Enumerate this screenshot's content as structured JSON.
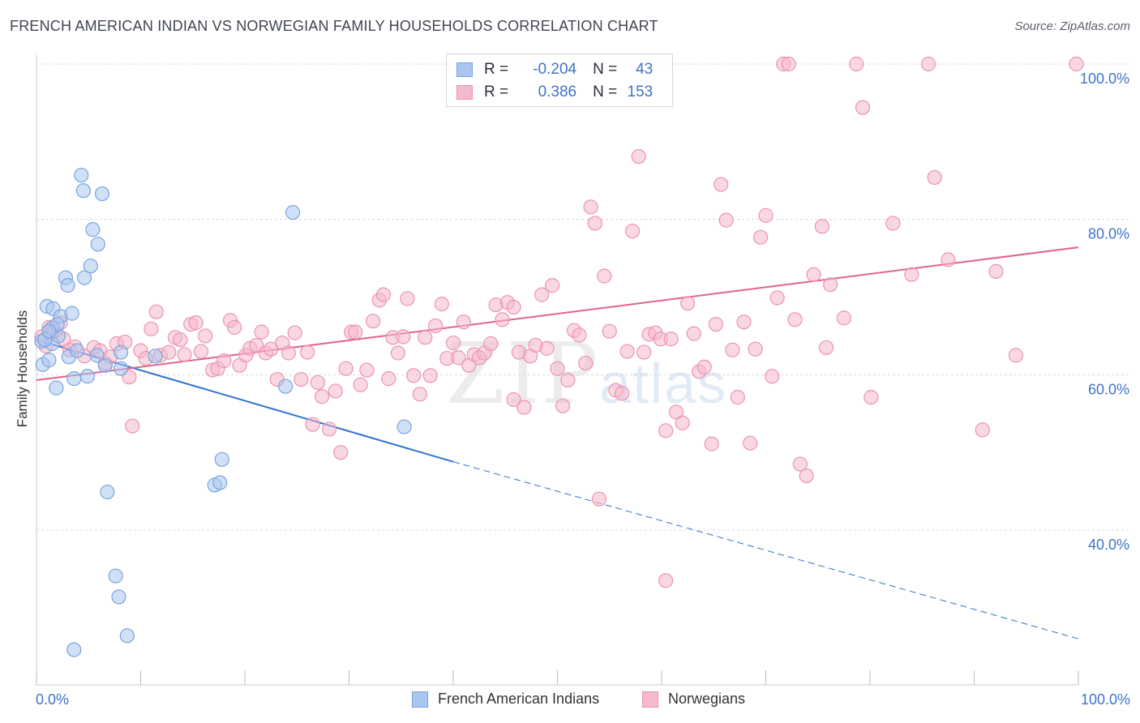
{
  "header": {
    "title": "FRENCH AMERICAN INDIAN VS NORWEGIAN FAMILY HOUSEHOLDS CORRELATION CHART",
    "source": "Source: ZipAtlas.com"
  },
  "watermark": {
    "zip": "ZIP",
    "atlas": "atlas"
  },
  "legend_top": {
    "rows": [
      {
        "r_label": "R =",
        "r_value": "-0.204",
        "n_label": "N =",
        "n_value": "43"
      },
      {
        "r_label": "R =",
        "r_value": "0.386",
        "n_label": "N =",
        "n_value": "153"
      }
    ]
  },
  "legend_bottom": {
    "items": [
      "French American Indians",
      "Norwegians"
    ]
  },
  "colors": {
    "blue_fill": "#a9c6f0",
    "blue_stroke": "#7ba3dc",
    "blue_line": "#2f73d0",
    "pink_fill": "#f6b8cb",
    "pink_stroke": "#eb93b0",
    "pink_line": "#e0648e",
    "tick_text": "#3f74c9",
    "grid": "#d9d9d9"
  },
  "chart_data": {
    "type": "scatter",
    "title": "FRENCH AMERICAN INDIAN VS NORWEGIAN FAMILY HOUSEHOLDS CORRELATION CHART",
    "xlabel": "",
    "ylabel": "Family Households",
    "xlim": [
      0,
      100
    ],
    "ylim": [
      20,
      102
    ],
    "x_tick_labels": [
      "0.0%",
      "100.0%"
    ],
    "y_ticks": [
      40,
      60,
      80,
      100
    ],
    "y_tick_labels": [
      "40.0%",
      "60.0%",
      "80.0%",
      "100.0%"
    ],
    "grid": true,
    "legend_position": "top-center",
    "series": [
      {
        "name": "French American Indians",
        "color": "#a9c6f0",
        "R": -0.204,
        "N": 43,
        "trend": {
          "x0": 0,
          "y0": 64.5,
          "x1": 40,
          "y1": 48.8,
          "dashed_to_x": 100,
          "dashed_to_y": 26.0
        },
        "points": [
          [
            0.5,
            64.3
          ],
          [
            0.6,
            61.3
          ],
          [
            1.0,
            68.8
          ],
          [
            1.2,
            61.9
          ],
          [
            1.5,
            64.0
          ],
          [
            1.6,
            68.5
          ],
          [
            1.9,
            58.3
          ],
          [
            2.1,
            65.0
          ],
          [
            2.3,
            67.5
          ],
          [
            2.8,
            72.5
          ],
          [
            3.0,
            71.5
          ],
          [
            3.1,
            62.3
          ],
          [
            3.4,
            67.9
          ],
          [
            3.6,
            59.5
          ],
          [
            3.9,
            63.1
          ],
          [
            4.3,
            85.7
          ],
          [
            4.5,
            83.7
          ],
          [
            4.6,
            72.5
          ],
          [
            4.9,
            59.8
          ],
          [
            5.2,
            74.0
          ],
          [
            5.4,
            78.7
          ],
          [
            5.8,
            62.5
          ],
          [
            5.9,
            76.8
          ],
          [
            6.3,
            83.3
          ],
          [
            6.8,
            44.9
          ],
          [
            7.6,
            34.1
          ],
          [
            7.9,
            31.4
          ],
          [
            8.1,
            60.8
          ],
          [
            8.7,
            26.4
          ],
          [
            11.4,
            62.4
          ],
          [
            17.1,
            45.8
          ],
          [
            17.6,
            46.1
          ],
          [
            17.8,
            49.1
          ],
          [
            23.9,
            58.5
          ],
          [
            24.6,
            80.9
          ],
          [
            35.3,
            53.3
          ],
          [
            1.5,
            66.0
          ],
          [
            2.0,
            66.5
          ],
          [
            0.8,
            64.5
          ],
          [
            3.6,
            24.6
          ],
          [
            6.6,
            61.2
          ],
          [
            8.1,
            62.9
          ],
          [
            1.2,
            65.6
          ]
        ]
      },
      {
        "name": "Norwegians",
        "color": "#f6b8cb",
        "R": 0.386,
        "N": 153,
        "trend": {
          "x0": 0,
          "y0": 59.3,
          "x1": 100,
          "y1": 76.4
        },
        "points": [
          [
            0.5,
            64.9
          ],
          [
            0.9,
            63.7
          ],
          [
            1.2,
            66.1
          ],
          [
            1.5,
            65.4
          ],
          [
            1.8,
            65.6
          ],
          [
            2.3,
            66.7
          ],
          [
            2.6,
            64.6
          ],
          [
            3.2,
            63.2
          ],
          [
            3.7,
            63.6
          ],
          [
            4.6,
            62.4
          ],
          [
            5.5,
            63.5
          ],
          [
            6.1,
            63.1
          ],
          [
            6.6,
            61.5
          ],
          [
            7.1,
            62.3
          ],
          [
            7.7,
            64.0
          ],
          [
            8.5,
            64.2
          ],
          [
            8.9,
            59.7
          ],
          [
            9.2,
            53.4
          ],
          [
            10.0,
            63.1
          ],
          [
            10.5,
            62.1
          ],
          [
            11.0,
            65.9
          ],
          [
            11.5,
            68.1
          ],
          [
            11.9,
            62.5
          ],
          [
            12.7,
            62.9
          ],
          [
            13.3,
            64.8
          ],
          [
            13.8,
            64.5
          ],
          [
            14.2,
            62.6
          ],
          [
            14.8,
            66.5
          ],
          [
            15.3,
            66.7
          ],
          [
            15.8,
            63.0
          ],
          [
            16.2,
            65.0
          ],
          [
            16.9,
            60.6
          ],
          [
            17.4,
            60.8
          ],
          [
            18.0,
            61.8
          ],
          [
            18.6,
            67.0
          ],
          [
            19.0,
            66.1
          ],
          [
            19.5,
            61.2
          ],
          [
            20.1,
            62.5
          ],
          [
            20.5,
            63.4
          ],
          [
            21.1,
            63.8
          ],
          [
            21.6,
            65.5
          ],
          [
            22.0,
            62.8
          ],
          [
            22.5,
            63.3
          ],
          [
            23.1,
            59.4
          ],
          [
            23.6,
            64.1
          ],
          [
            24.2,
            62.8
          ],
          [
            24.8,
            65.4
          ],
          [
            25.4,
            59.4
          ],
          [
            26.0,
            62.9
          ],
          [
            26.5,
            53.6
          ],
          [
            27.0,
            59.0
          ],
          [
            27.4,
            57.2
          ],
          [
            28.1,
            53.0
          ],
          [
            28.7,
            57.9
          ],
          [
            29.2,
            50.0
          ],
          [
            29.7,
            60.8
          ],
          [
            30.2,
            65.5
          ],
          [
            30.6,
            65.5
          ],
          [
            31.1,
            58.7
          ],
          [
            31.7,
            60.6
          ],
          [
            32.3,
            66.9
          ],
          [
            32.9,
            69.6
          ],
          [
            33.3,
            70.3
          ],
          [
            33.8,
            59.5
          ],
          [
            34.2,
            64.8
          ],
          [
            34.7,
            62.8
          ],
          [
            35.2,
            64.9
          ],
          [
            35.6,
            69.8
          ],
          [
            36.2,
            59.9
          ],
          [
            36.8,
            57.5
          ],
          [
            37.3,
            64.8
          ],
          [
            37.8,
            59.9
          ],
          [
            38.3,
            66.3
          ],
          [
            38.9,
            69.1
          ],
          [
            39.4,
            62.1
          ],
          [
            40.0,
            64.1
          ],
          [
            40.5,
            62.2
          ],
          [
            41.0,
            66.8
          ],
          [
            41.5,
            61.2
          ],
          [
            42.0,
            62.6
          ],
          [
            42.5,
            62.2
          ],
          [
            43.0,
            62.8
          ],
          [
            43.6,
            64.0
          ],
          [
            44.1,
            69.0
          ],
          [
            44.7,
            67.1
          ],
          [
            45.2,
            69.3
          ],
          [
            45.8,
            68.7
          ],
          [
            46.3,
            62.9
          ],
          [
            46.8,
            55.8
          ],
          [
            47.4,
            62.4
          ],
          [
            47.9,
            63.8
          ],
          [
            48.5,
            70.3
          ],
          [
            49.0,
            63.4
          ],
          [
            49.5,
            71.5
          ],
          [
            50.0,
            60.8
          ],
          [
            50.5,
            56.0
          ],
          [
            51.0,
            59.3
          ],
          [
            51.6,
            65.7
          ],
          [
            52.1,
            65.1
          ],
          [
            52.7,
            61.5
          ],
          [
            53.2,
            81.6
          ],
          [
            53.6,
            79.5
          ],
          [
            54.0,
            44.0
          ],
          [
            54.5,
            72.7
          ],
          [
            55.0,
            65.6
          ],
          [
            55.6,
            58.0
          ],
          [
            56.2,
            57.6
          ],
          [
            56.7,
            63.0
          ],
          [
            57.2,
            78.5
          ],
          [
            57.8,
            88.1
          ],
          [
            58.3,
            62.9
          ],
          [
            58.8,
            65.2
          ],
          [
            59.4,
            65.4
          ],
          [
            59.9,
            64.6
          ],
          [
            60.4,
            52.8
          ],
          [
            60.9,
            64.6
          ],
          [
            61.4,
            55.2
          ],
          [
            62.0,
            53.8
          ],
          [
            62.5,
            69.2
          ],
          [
            63.1,
            65.3
          ],
          [
            63.6,
            60.4
          ],
          [
            64.1,
            61.0
          ],
          [
            64.8,
            51.1
          ],
          [
            65.2,
            66.5
          ],
          [
            65.7,
            84.5
          ],
          [
            66.2,
            79.9
          ],
          [
            66.8,
            63.2
          ],
          [
            67.3,
            57.1
          ],
          [
            67.9,
            66.8
          ],
          [
            68.5,
            51.2
          ],
          [
            69.0,
            63.3
          ],
          [
            69.5,
            77.7
          ],
          [
            70.0,
            80.5
          ],
          [
            70.6,
            59.8
          ],
          [
            71.1,
            69.9
          ],
          [
            71.7,
            100.0
          ],
          [
            72.2,
            100.0
          ],
          [
            72.8,
            67.1
          ],
          [
            73.3,
            48.5
          ],
          [
            73.9,
            47.0
          ],
          [
            74.6,
            72.9
          ],
          [
            75.4,
            79.1
          ],
          [
            75.8,
            63.5
          ],
          [
            76.2,
            71.6
          ],
          [
            77.5,
            67.3
          ],
          [
            78.7,
            100.0
          ],
          [
            79.3,
            94.4
          ],
          [
            80.1,
            57.1
          ],
          [
            82.2,
            79.5
          ],
          [
            84.0,
            72.9
          ],
          [
            85.6,
            100.0
          ],
          [
            86.2,
            85.4
          ],
          [
            87.5,
            74.8
          ],
          [
            90.8,
            52.9
          ],
          [
            92.1,
            73.3
          ],
          [
            94.0,
            62.5
          ],
          [
            99.8,
            100.0
          ],
          [
            60.4,
            33.5
          ],
          [
            45.8,
            56.8
          ]
        ]
      }
    ]
  }
}
